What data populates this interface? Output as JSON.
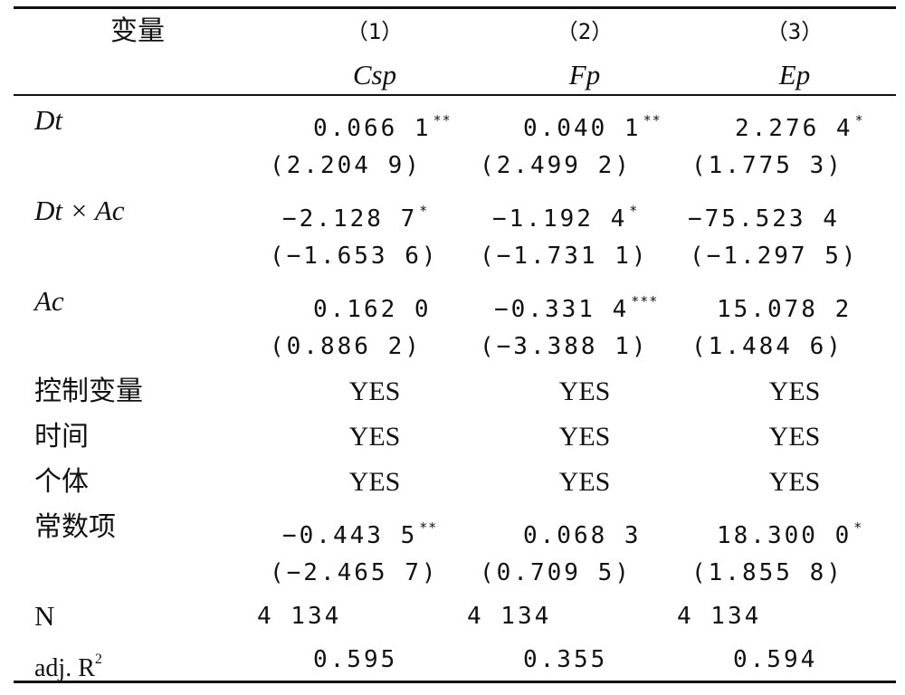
{
  "header": {
    "variable_label": "变量",
    "col_numbers": [
      "（1）",
      "（2）",
      "（3）"
    ],
    "col_names": [
      "Csp",
      "Fp",
      "Ep"
    ]
  },
  "rows": [
    {
      "label": "Dt",
      "cells": [
        {
          "v": "0.066 1",
          "s": "**"
        },
        {
          "v": "0.040 1",
          "s": "**"
        },
        {
          "v": "2.276 4",
          "s": "*"
        }
      ]
    },
    {
      "label": "",
      "cells": [
        {
          "v": "(2.204 9)",
          "s": ""
        },
        {
          "v": "(2.499 2)",
          "s": ""
        },
        {
          "v": "(1.775 3)",
          "s": ""
        }
      ]
    },
    {
      "label": "Dt × Ac",
      "cells": [
        {
          "v": "−2.128 7",
          "s": "*"
        },
        {
          "v": "−1.192 4",
          "s": "*"
        },
        {
          "v": "−75.523 4",
          "s": ""
        }
      ]
    },
    {
      "label": "",
      "cells": [
        {
          "v": "(−1.653 6)",
          "s": ""
        },
        {
          "v": "(−1.731 1)",
          "s": ""
        },
        {
          "v": "(−1.297 5)",
          "s": ""
        }
      ]
    },
    {
      "label": "Ac",
      "cells": [
        {
          "v": "0.162 0",
          "s": ""
        },
        {
          "v": "−0.331 4",
          "s": "***"
        },
        {
          "v": "15.078 2",
          "s": ""
        }
      ]
    },
    {
      "label": "",
      "cells": [
        {
          "v": "(0.886 2)",
          "s": ""
        },
        {
          "v": "(−3.388 1)",
          "s": ""
        },
        {
          "v": "(1.484 6)",
          "s": ""
        }
      ]
    }
  ],
  "yes_rows": [
    {
      "label": "控制变量",
      "values": [
        "YES",
        "YES",
        "YES"
      ]
    },
    {
      "label": "时间",
      "values": [
        "YES",
        "YES",
        "YES"
      ]
    },
    {
      "label": "个体",
      "values": [
        "YES",
        "YES",
        "YES"
      ]
    }
  ],
  "constant": {
    "label": "常数项",
    "cells": [
      {
        "v": "−0.443 5",
        "s": "**"
      },
      {
        "v": "0.068 3",
        "s": ""
      },
      {
        "v": "18.300 0",
        "s": "*"
      }
    ],
    "tstats": [
      "(−2.465 7)",
      "(0.709 5)",
      "(1.855 8)"
    ]
  },
  "n_row": {
    "label": "N",
    "values": [
      "4 134",
      "4 134",
      "4 134"
    ]
  },
  "r2_row": {
    "label": "adj. R",
    "label_sup": "2",
    "values": [
      "0.595",
      "0.355",
      "0.594"
    ]
  }
}
